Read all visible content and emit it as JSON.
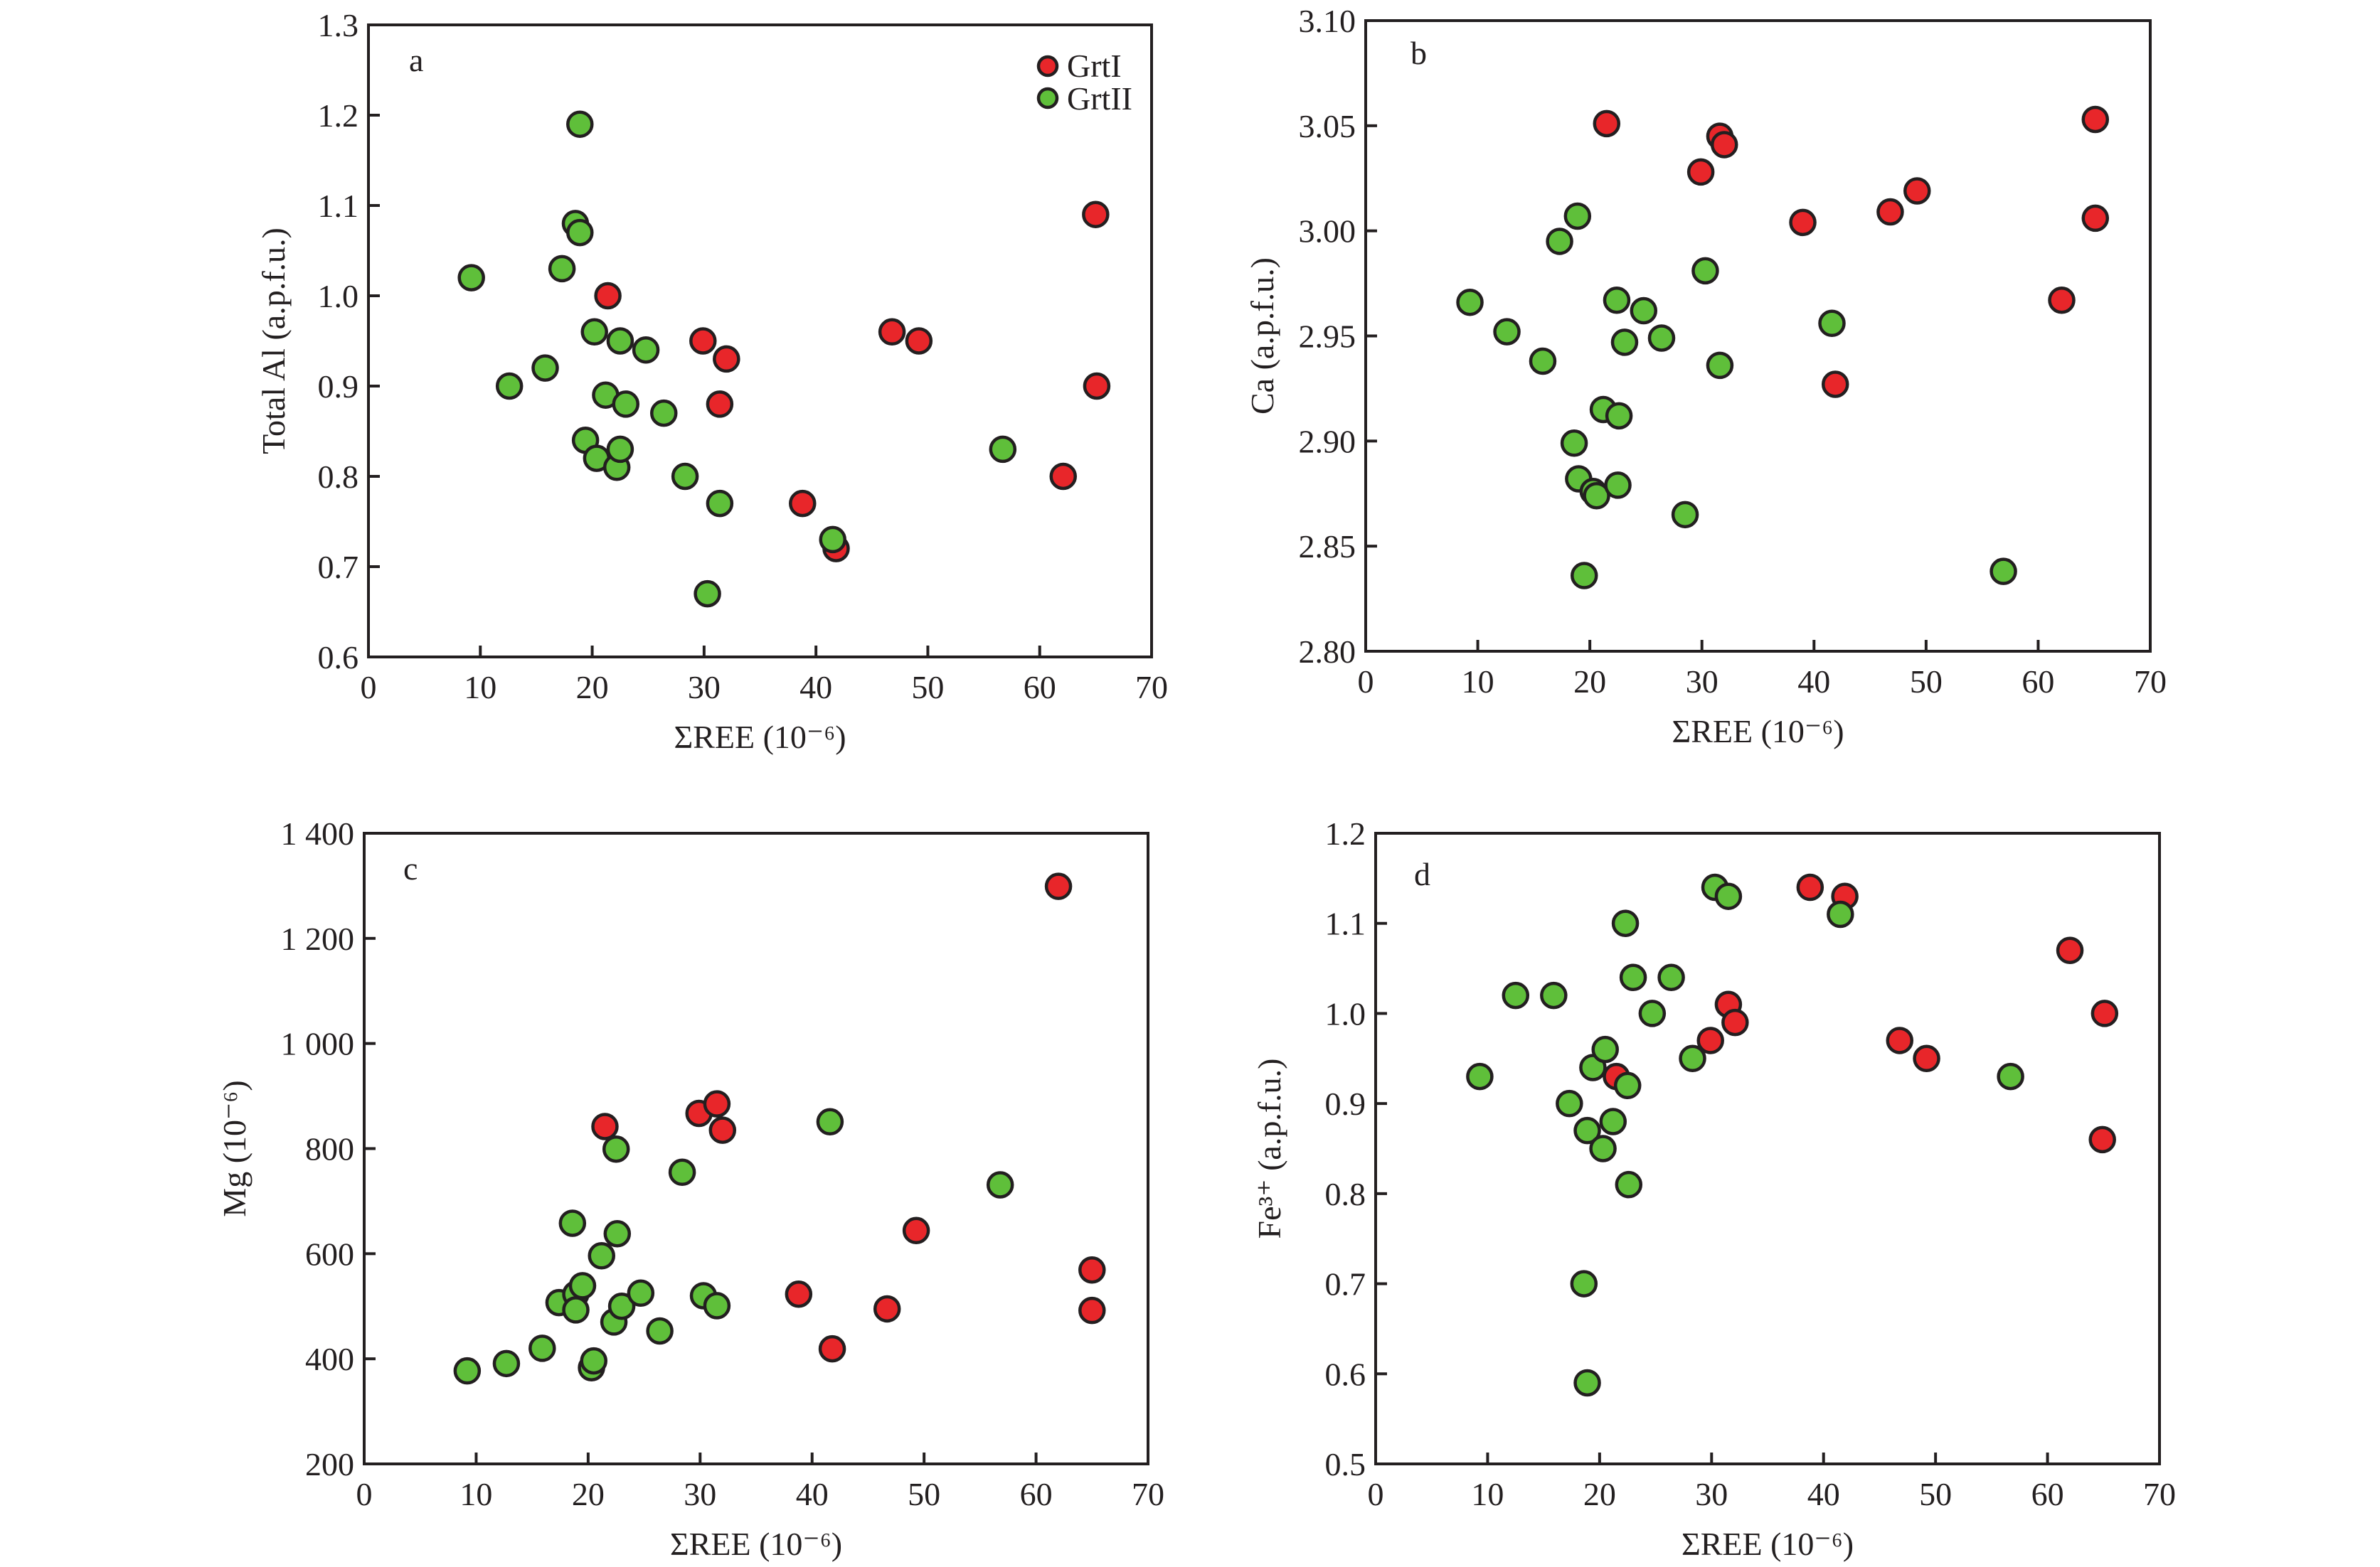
{
  "colors": {
    "GrtI": "#e8262a",
    "GrtII": "#5fbf3a",
    "outline": "#231f20"
  },
  "legend": {
    "placement": "top-right of panel a",
    "entries": [
      {
        "key": "GrtI",
        "label": "GrtI"
      },
      {
        "key": "GrtII",
        "label": "GrtII"
      }
    ]
  },
  "chart_data": [
    {
      "panel": "a",
      "type": "scatter",
      "title": "",
      "xlabel": "ΣREE (10⁻⁶)",
      "ylabel": "Total Al (a.p.f.u.)",
      "xlim": [
        0,
        70
      ],
      "ylim": [
        0.6,
        1.3
      ],
      "xticks": [
        0,
        10,
        20,
        30,
        40,
        50,
        60,
        70
      ],
      "xtick_labels": [
        "0",
        "10",
        "20",
        "30",
        "40",
        "50",
        "60",
        "70"
      ],
      "yticks": [
        0.6,
        0.7,
        0.8,
        0.9,
        1.0,
        1.1,
        1.2,
        1.3
      ],
      "ytick_labels": [
        "0.6",
        "0.7",
        "0.8",
        "0.9",
        "1.0",
        "1.1",
        "1.2",
        "1.3"
      ],
      "grid": false,
      "series": [
        {
          "name": "GrtI",
          "points": [
            [
              21.4,
              1.0
            ],
            [
              29.9,
              0.95
            ],
            [
              32.0,
              0.93
            ],
            [
              31.4,
              0.88
            ],
            [
              38.8,
              0.77
            ],
            [
              41.8,
              0.72
            ],
            [
              46.8,
              0.96
            ],
            [
              49.2,
              0.95
            ],
            [
              62.1,
              0.8
            ],
            [
              65.0,
              1.09
            ],
            [
              65.1,
              0.9
            ]
          ]
        },
        {
          "name": "GrtII",
          "points": [
            [
              9.2,
              1.02
            ],
            [
              12.6,
              0.9
            ],
            [
              15.8,
              0.92
            ],
            [
              17.3,
              1.03
            ],
            [
              18.5,
              1.08
            ],
            [
              18.9,
              1.07
            ],
            [
              18.9,
              1.19
            ],
            [
              19.4,
              0.84
            ],
            [
              20.2,
              0.96
            ],
            [
              20.4,
              0.82
            ],
            [
              21.2,
              0.89
            ],
            [
              22.2,
              0.81
            ],
            [
              22.5,
              0.95
            ],
            [
              22.5,
              0.83
            ],
            [
              23.0,
              0.88
            ],
            [
              24.8,
              0.94
            ],
            [
              26.4,
              0.87
            ],
            [
              28.3,
              0.8
            ],
            [
              30.3,
              0.67
            ],
            [
              31.4,
              0.77
            ],
            [
              41.5,
              0.73
            ],
            [
              56.7,
              0.83
            ]
          ]
        }
      ]
    },
    {
      "panel": "b",
      "type": "scatter",
      "title": "",
      "xlabel": "ΣREE (10⁻⁶)",
      "ylabel": "Ca (a.p.f.u.)",
      "xlim": [
        0,
        70
      ],
      "ylim": [
        2.8,
        3.1
      ],
      "xticks": [
        0,
        10,
        20,
        30,
        40,
        50,
        60,
        70
      ],
      "xtick_labels": [
        "0",
        "10",
        "20",
        "30",
        "40",
        "50",
        "60",
        "70"
      ],
      "yticks": [
        2.8,
        2.85,
        2.9,
        2.95,
        3.0,
        3.05,
        3.1
      ],
      "ytick_labels": [
        "2.80",
        "2.85",
        "2.90",
        "2.95",
        "3.00",
        "3.05",
        "3.10"
      ],
      "grid": false,
      "series": [
        {
          "name": "GrtI",
          "points": [
            [
              21.5,
              3.051
            ],
            [
              29.9,
              3.028
            ],
            [
              31.6,
              3.045
            ],
            [
              32.0,
              3.041
            ],
            [
              39.0,
              3.004
            ],
            [
              41.9,
              2.927
            ],
            [
              46.8,
              3.009
            ],
            [
              49.2,
              3.019
            ],
            [
              62.1,
              2.967
            ],
            [
              65.1,
              3.053
            ],
            [
              65.1,
              3.006
            ]
          ]
        },
        {
          "name": "GrtII",
          "points": [
            [
              9.3,
              2.966
            ],
            [
              12.6,
              2.952
            ],
            [
              15.8,
              2.938
            ],
            [
              17.3,
              2.995
            ],
            [
              18.6,
              2.899
            ],
            [
              18.9,
              3.007
            ],
            [
              19.0,
              2.882
            ],
            [
              19.5,
              2.836
            ],
            [
              20.3,
              2.876
            ],
            [
              20.6,
              2.874
            ],
            [
              21.2,
              2.915
            ],
            [
              22.4,
              2.967
            ],
            [
              22.6,
              2.912
            ],
            [
              22.5,
              2.879
            ],
            [
              23.1,
              2.947
            ],
            [
              24.8,
              2.962
            ],
            [
              26.4,
              2.949
            ],
            [
              28.5,
              2.865
            ],
            [
              30.3,
              2.981
            ],
            [
              31.6,
              2.936
            ],
            [
              41.6,
              2.956
            ],
            [
              56.9,
              2.838
            ]
          ]
        }
      ]
    },
    {
      "panel": "c",
      "type": "scatter",
      "title": "",
      "xlabel": "ΣREE (10⁻⁶)",
      "ylabel": "Mg (10⁻⁶)",
      "xlim": [
        0,
        70
      ],
      "ylim": [
        200,
        1400
      ],
      "xticks": [
        0,
        10,
        20,
        30,
        40,
        50,
        60,
        70
      ],
      "xtick_labels": [
        "0",
        "10",
        "20",
        "30",
        "40",
        "50",
        "60",
        "70"
      ],
      "yticks": [
        200,
        400,
        600,
        800,
        1000,
        1200,
        1400
      ],
      "ytick_labels": [
        "200",
        "400",
        "600",
        "800",
        "1 000",
        "1 200",
        "1 400"
      ],
      "grid": false,
      "series": [
        {
          "name": "GrtI",
          "points": [
            [
              21.5,
              842
            ],
            [
              29.9,
              867
            ],
            [
              31.5,
              885
            ],
            [
              32.0,
              835
            ],
            [
              38.8,
              523
            ],
            [
              41.8,
              419
            ],
            [
              46.7,
              495
            ],
            [
              49.3,
              644
            ],
            [
              62.0,
              1299
            ],
            [
              65.0,
              569
            ],
            [
              65.0,
              492
            ]
          ]
        },
        {
          "name": "GrtII",
          "points": [
            [
              9.2,
              377
            ],
            [
              12.7,
              391
            ],
            [
              15.9,
              420
            ],
            [
              17.4,
              507
            ],
            [
              18.6,
              658
            ],
            [
              18.9,
              523
            ],
            [
              18.9,
              493
            ],
            [
              19.5,
              539
            ],
            [
              20.3,
              383
            ],
            [
              20.5,
              396
            ],
            [
              21.2,
              596
            ],
            [
              22.3,
              470
            ],
            [
              22.5,
              799
            ],
            [
              22.6,
              638
            ],
            [
              23.0,
              500
            ],
            [
              24.7,
              525
            ],
            [
              26.4,
              453
            ],
            [
              28.4,
              755
            ],
            [
              30.3,
              520
            ],
            [
              31.5,
              501
            ],
            [
              41.6,
              851
            ],
            [
              56.8,
              731
            ]
          ]
        }
      ]
    },
    {
      "panel": "d",
      "type": "scatter",
      "title": "",
      "xlabel": "ΣREE (10⁻⁶)",
      "ylabel": "Fe³⁺ (a.p.f.u.)",
      "xlim": [
        0,
        70
      ],
      "ylim": [
        0.5,
        1.2
      ],
      "xticks": [
        0,
        10,
        20,
        30,
        40,
        50,
        60,
        70
      ],
      "xtick_labels": [
        "0",
        "10",
        "20",
        "30",
        "40",
        "50",
        "60",
        "70"
      ],
      "yticks": [
        0.5,
        0.6,
        0.7,
        0.8,
        0.9,
        1.0,
        1.1,
        1.2
      ],
      "ytick_labels": [
        "0.5",
        "0.6",
        "0.7",
        "0.8",
        "0.9",
        "1.0",
        "1.1",
        "1.2"
      ],
      "grid": false,
      "series": [
        {
          "name": "GrtI",
          "points": [
            [
              21.5,
              0.93
            ],
            [
              29.9,
              0.97
            ],
            [
              31.5,
              1.01
            ],
            [
              32.1,
              0.99
            ],
            [
              38.8,
              1.14
            ],
            [
              41.9,
              1.13
            ],
            [
              46.8,
              0.97
            ],
            [
              49.2,
              0.95
            ],
            [
              62.0,
              1.07
            ],
            [
              65.1,
              1.0
            ],
            [
              64.9,
              0.86
            ]
          ]
        },
        {
          "name": "GrtII",
          "points": [
            [
              9.3,
              0.93
            ],
            [
              12.5,
              1.02
            ],
            [
              15.9,
              1.02
            ],
            [
              17.3,
              0.9
            ],
            [
              18.6,
              0.7
            ],
            [
              18.9,
              0.87
            ],
            [
              18.9,
              0.59
            ],
            [
              19.4,
              0.94
            ],
            [
              20.3,
              0.85
            ],
            [
              20.5,
              0.96
            ],
            [
              21.2,
              0.88
            ],
            [
              22.3,
              1.1
            ],
            [
              22.5,
              0.92
            ],
            [
              22.6,
              0.81
            ],
            [
              23.0,
              1.04
            ],
            [
              24.7,
              1.0
            ],
            [
              26.4,
              1.04
            ],
            [
              28.3,
              0.95
            ],
            [
              30.3,
              1.14
            ],
            [
              31.5,
              1.13
            ],
            [
              41.5,
              1.11
            ],
            [
              56.7,
              0.93
            ]
          ]
        }
      ]
    }
  ]
}
